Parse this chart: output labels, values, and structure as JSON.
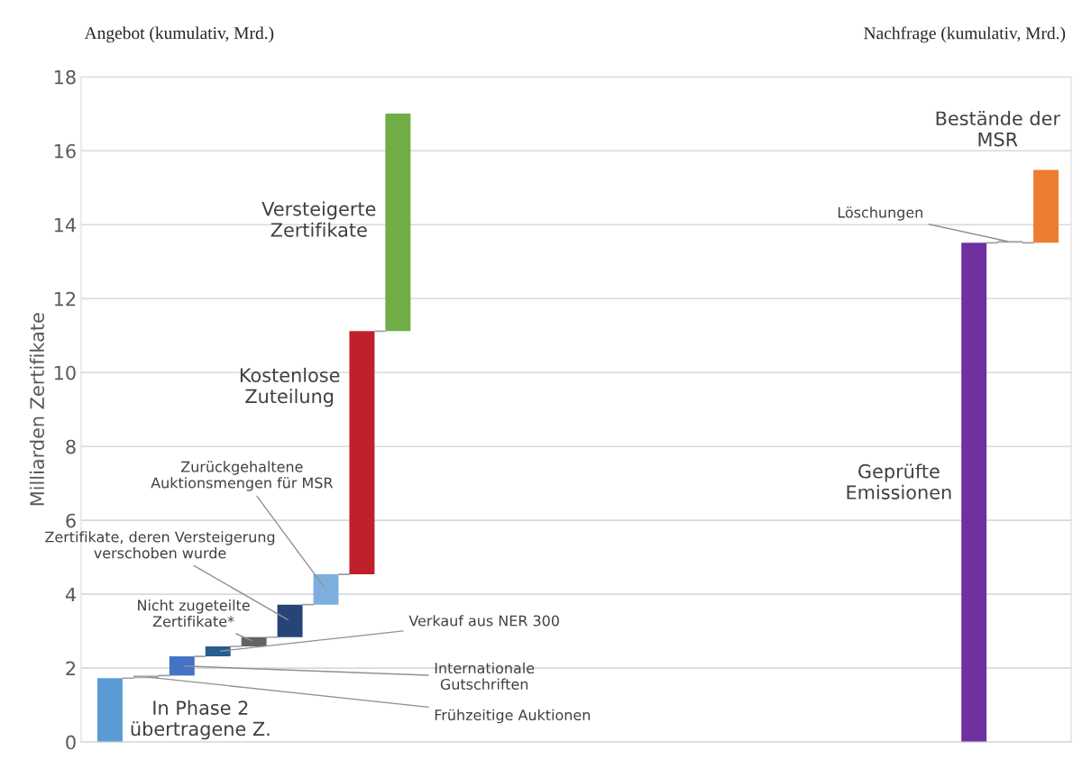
{
  "chart_data": {
    "type": "bar",
    "categories": [
      null,
      null,
      null,
      null,
      null,
      null,
      null,
      null,
      null,
      null,
      null,
      null,
      null,
      null,
      null,
      null,
      null,
      null,
      null,
      null,
      null,
      null,
      null,
      null,
      null,
      null,
      null
    ],
    "base": [
      0,
      1.73,
      1.8,
      2.32,
      2.59,
      2.84,
      3.72,
      4.54,
      11.12,
      null,
      null,
      null,
      null,
      null,
      null,
      null,
      null,
      null,
      null,
      null,
      null,
      null,
      null,
      null,
      0,
      13.51,
      13.51
    ],
    "values": [
      1.73,
      0.07,
      0.52,
      0.27,
      0.25,
      0.88,
      0.82,
      6.58,
      5.89,
      null,
      null,
      null,
      null,
      null,
      null,
      null,
      null,
      null,
      null,
      null,
      null,
      null,
      null,
      null,
      13.51,
      0.05,
      1.97
    ],
    "colors": [
      "#5b9bd5",
      "#a5a5a5",
      "#4472c4",
      "#255e91",
      "#636363",
      "#264478",
      "#7cafdd",
      "#c0202a",
      "#70ad47",
      null,
      null,
      null,
      null,
      null,
      null,
      null,
      null,
      null,
      null,
      null,
      null,
      null,
      null,
      null,
      "#7030a0",
      "#a5a5a5",
      "#ed7d31"
    ],
    "ylabel": "Milliarden Zertifikate",
    "ylim": [
      0,
      18
    ],
    "yticks": [
      0,
      2,
      4,
      6,
      8,
      10,
      12,
      14,
      16,
      18
    ],
    "grid": "y",
    "annotations": [
      "Angebot (kumulativ, Mrd.)",
      "Nachfrage (kumulativ, Mrd.)",
      "In Phase 2 übertragene Z.",
      "Frühzeitige Auktionen",
      "Internationale Gutschriften",
      "Verkauf aus NER 300",
      "Nicht zugeteilte Zertifikate*",
      "Zertifikate, deren Versteigerung verschoben wurde",
      "Zurückgehaltene Auktionsmengen für MSR",
      "Kostenlose Zuteilung",
      "Versteigerte Zertifikate",
      "Geprüfte Emissionen",
      "Löschungen",
      "Bestände der MSR"
    ]
  }
}
